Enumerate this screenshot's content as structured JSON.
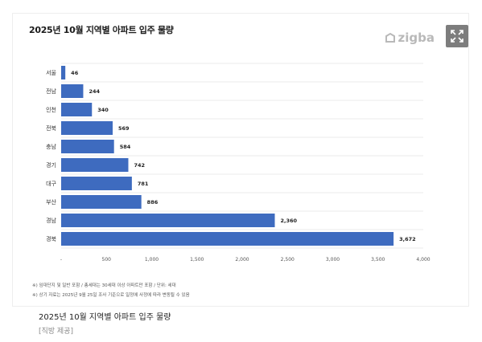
{
  "colors": {
    "bar": "#3e6bbf",
    "grid": "#e4e4e4",
    "brand": "#b9b9b9",
    "expand_bg": "#7d7d7d"
  },
  "brand": {
    "name": "zigba",
    "mark_icon": "zigbang-logo-icon"
  },
  "expand": {
    "icon": "expand-icon"
  },
  "footnotes": [
    "※) 임대단지 및 일반 포함 / 총세대는 30세대 이상 아파트만 포함 / 단위: 세대",
    "※) 상기 자료는 2025년 9월 25일 조사 기준으로 일정에 사정에 따라 변동될 수 있음"
  ],
  "caption": {
    "title": "2025년 10월 지역별 아파트 입주 물량",
    "credit": "[직방 제공]"
  },
  "chart_data": {
    "type": "bar",
    "orientation": "horizontal",
    "title": "2025년 10월 지역별 아파트 입주 물량",
    "categories": [
      "서울",
      "전남",
      "인천",
      "전북",
      "충남",
      "경기",
      "대구",
      "부산",
      "경남",
      "경북"
    ],
    "values": [
      46,
      244,
      340,
      569,
      584,
      742,
      781,
      886,
      2360,
      3672
    ],
    "value_labels": [
      "46",
      "244",
      "340",
      "569",
      "584",
      "742",
      "781",
      "886",
      "2,360",
      "3,672"
    ],
    "xlim": [
      0,
      4000
    ],
    "x_ticks": [
      0,
      500,
      1000,
      1500,
      2000,
      2500,
      3000,
      3500,
      4000
    ],
    "x_tick_labels": [
      "-",
      "500",
      "1,000",
      "1,500",
      "2,000",
      "2,500",
      "3,000",
      "3,500",
      "4,000"
    ],
    "grid": true,
    "legend": "none"
  }
}
